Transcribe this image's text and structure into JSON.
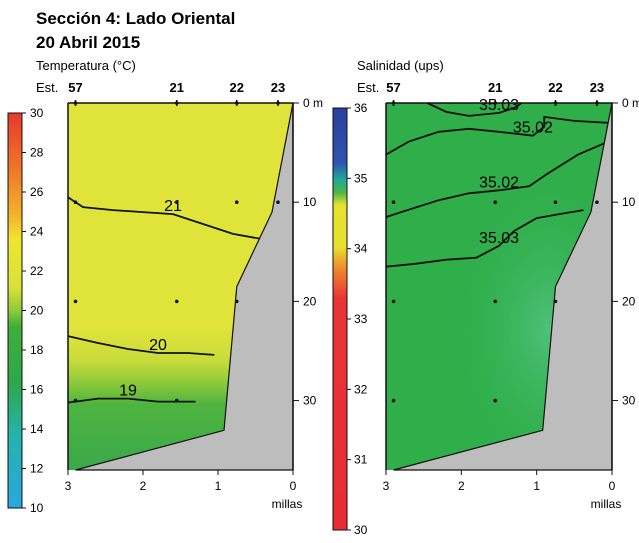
{
  "section_title": "Sección 4: Lado Oriental",
  "date": "20 Abril 2015",
  "chart_data": [
    {
      "type": "heatmap",
      "title": "Temperatura (°C)",
      "station_label": "Est.",
      "stations": [
        "57",
        "21",
        "22",
        "23"
      ],
      "station_distance_millas": [
        2.9,
        1.55,
        0.75,
        0.2
      ],
      "xlabel": "millas",
      "x_ticks": [
        "3",
        "2",
        "1",
        "0"
      ],
      "xlim": [
        3,
        0
      ],
      "y_ticks": [
        "0 m",
        "10",
        "20",
        "30"
      ],
      "ylim_m": [
        0,
        37
      ],
      "colorbar": {
        "min": 10,
        "max": 30,
        "ticks": [
          "30",
          "28",
          "26",
          "24",
          "22",
          "20",
          "18",
          "16",
          "14",
          "12",
          "10"
        ]
      },
      "contour_labels": [
        "21",
        "20",
        "19"
      ],
      "contours": [
        {
          "level": 21,
          "points": [
            [
              3.0,
              9.5
            ],
            [
              2.8,
              10.5
            ],
            [
              2.4,
              10.8
            ],
            [
              2.0,
              11.0
            ],
            [
              1.6,
              11.2
            ],
            [
              1.2,
              12.2
            ],
            [
              0.8,
              13.2
            ],
            [
              0.35,
              13.8
            ]
          ]
        },
        {
          "level": 20,
          "points": [
            [
              3.0,
              23.5
            ],
            [
              2.6,
              24.2
            ],
            [
              2.2,
              24.8
            ],
            [
              1.8,
              25.2
            ],
            [
              1.4,
              25.2
            ],
            [
              1.05,
              25.4
            ]
          ]
        },
        {
          "level": 19,
          "points": [
            [
              3.0,
              30.2
            ],
            [
              2.6,
              29.8
            ],
            [
              2.2,
              29.8
            ],
            [
              1.8,
              30.1
            ],
            [
              1.3,
              30.1
            ]
          ]
        }
      ]
    },
    {
      "type": "heatmap",
      "title": "Salinidad (ups)",
      "station_label": "Est.",
      "stations": [
        "57",
        "21",
        "22",
        "23"
      ],
      "station_distance_millas": [
        2.9,
        1.55,
        0.75,
        0.2
      ],
      "xlabel": "millas",
      "x_ticks": [
        "3",
        "2",
        "1",
        "0"
      ],
      "xlim": [
        3,
        0
      ],
      "y_ticks": [
        "0 m",
        "10",
        "20",
        "30"
      ],
      "ylim_m": [
        0,
        37
      ],
      "colorbar": {
        "min": 30,
        "max": 36,
        "ticks": [
          "36",
          "35",
          "34",
          "33",
          "32",
          "31",
          "30"
        ]
      },
      "contour_labels": [
        "35.03",
        "35.02",
        "35.02",
        "35.03"
      ],
      "contours": [
        {
          "level": 35.03,
          "points": [
            [
              2.45,
              0
            ],
            [
              2.2,
              0.9
            ],
            [
              1.9,
              1.3
            ],
            [
              1.5,
              1.0
            ],
            [
              1.3,
              0.5
            ],
            [
              1.2,
              0
            ]
          ]
        },
        {
          "level": 35.02,
          "points": [
            [
              3.0,
              5.2
            ],
            [
              2.7,
              3.9
            ],
            [
              2.3,
              2.9
            ],
            [
              1.9,
              2.6
            ],
            [
              1.5,
              2.9
            ],
            [
              1.05,
              3.3
            ],
            [
              0.9,
              2.4
            ],
            [
              0.9,
              1.4
            ],
            [
              0.5,
              1.8
            ],
            [
              0.05,
              2.0
            ]
          ]
        },
        {
          "level": 35.02,
          "points": [
            [
              3.0,
              11.5
            ],
            [
              2.8,
              11.0
            ],
            [
              2.3,
              9.8
            ],
            [
              1.9,
              9.1
            ],
            [
              1.5,
              8.8
            ],
            [
              1.1,
              8.4
            ],
            [
              0.85,
              7.1
            ],
            [
              0.45,
              5.2
            ],
            [
              0.05,
              3.9
            ]
          ]
        },
        {
          "level": 35.03,
          "points": [
            [
              3.0,
              16.5
            ],
            [
              2.6,
              16.2
            ],
            [
              2.2,
              15.8
            ],
            [
              1.8,
              15.6
            ],
            [
              1.5,
              14.4
            ],
            [
              1.3,
              12.9
            ],
            [
              1.0,
              11.6
            ],
            [
              0.7,
              11.2
            ],
            [
              0.38,
              10.8
            ]
          ]
        }
      ]
    }
  ]
}
